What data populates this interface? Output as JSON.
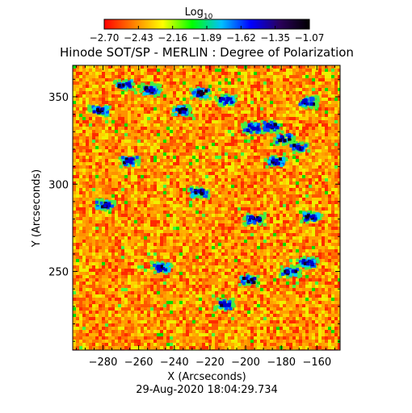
{
  "chart_data": {
    "type": "heatmap",
    "title": "Hinode SOT/SP - MERLIN : Degree of Polarization",
    "colorbar": {
      "label_main": "Log",
      "label_sub": "10",
      "ticks": [
        "−2.70",
        "−2.43",
        "−2.16",
        "−1.89",
        "−1.62",
        "−1.35",
        "−1.07"
      ],
      "range": [
        -2.7,
        -1.07
      ],
      "colormap": [
        "#ff0000",
        "#ff8000",
        "#ffff00",
        "#00ff00",
        "#00c0ff",
        "#0000ff",
        "#2a005a",
        "#000000"
      ]
    },
    "xlabel": "X (Arcseconds)",
    "ylabel": "Y (Arcseconds)",
    "xlim": [
      -297,
      -147
    ],
    "ylim": [
      205,
      368
    ],
    "xticks": [
      -280,
      -260,
      -240,
      -220,
      -200,
      -180,
      -160
    ],
    "yticks": [
      250,
      300,
      350
    ],
    "timestamp": "29-Aug-2020 18:04:29.734",
    "strong_polarization_regions": [
      {
        "x": -268,
        "y": 357
      },
      {
        "x": -253,
        "y": 354
      },
      {
        "x": -225,
        "y": 352
      },
      {
        "x": -211,
        "y": 348
      },
      {
        "x": -236,
        "y": 342
      },
      {
        "x": -196,
        "y": 332
      },
      {
        "x": -185,
        "y": 333
      },
      {
        "x": -178,
        "y": 326
      },
      {
        "x": -170,
        "y": 321
      },
      {
        "x": -165,
        "y": 347
      },
      {
        "x": -183,
        "y": 313
      },
      {
        "x": -226,
        "y": 295
      },
      {
        "x": -279,
        "y": 288
      },
      {
        "x": -195,
        "y": 280
      },
      {
        "x": -163,
        "y": 281
      },
      {
        "x": -247,
        "y": 252
      },
      {
        "x": -198,
        "y": 245
      },
      {
        "x": -175,
        "y": 250
      },
      {
        "x": -165,
        "y": 255
      },
      {
        "x": -212,
        "y": 231
      },
      {
        "x": -265,
        "y": 313
      },
      {
        "x": -282,
        "y": 342
      }
    ]
  }
}
